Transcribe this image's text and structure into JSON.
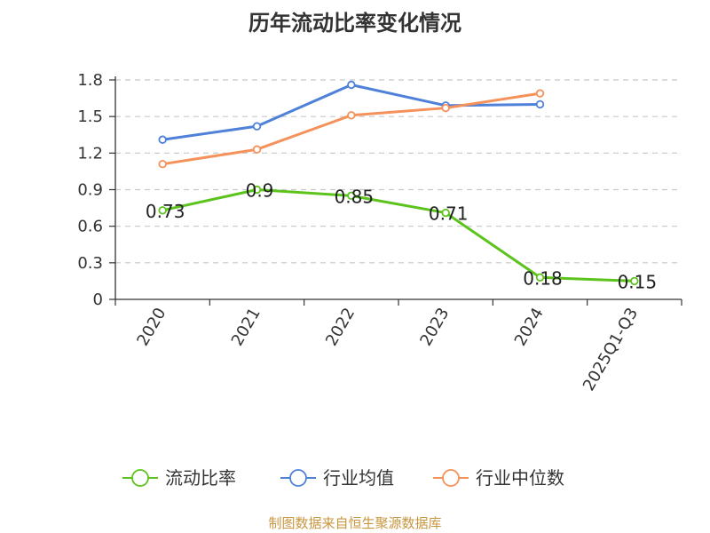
{
  "title": "历年流动比率变化情况",
  "source": "制图数据来自恒生聚源数据库",
  "chart_data": {
    "type": "line",
    "title": "历年流动比率变化情况",
    "categories": [
      "2020",
      "2021",
      "2022",
      "2023",
      "2024",
      "2025Q1-Q3"
    ],
    "ylim": [
      0,
      1.8
    ],
    "yticks": [
      0,
      0.3,
      0.6,
      0.9,
      1.2,
      1.5,
      1.8
    ],
    "ytick_labels": [
      "0",
      "0.3",
      "0.6",
      "0.9",
      "1.2",
      "1.5",
      "1.8"
    ],
    "grid": true,
    "legend_position": "bottom",
    "series": [
      {
        "name": "流动比率",
        "color": "#5cc31c",
        "values": [
          0.73,
          0.9,
          0.85,
          0.71,
          0.18,
          0.15
        ],
        "labels": [
          "0.73",
          "0.9",
          "0.85",
          "0.71",
          "0.18",
          "0.15"
        ]
      },
      {
        "name": "行业均值",
        "color": "#4f81d9",
        "values": [
          1.31,
          1.42,
          1.76,
          1.59,
          1.6,
          null
        ]
      },
      {
        "name": "行业中位数",
        "color": "#f5915a",
        "values": [
          1.11,
          1.23,
          1.51,
          1.57,
          1.69,
          null
        ]
      }
    ]
  }
}
